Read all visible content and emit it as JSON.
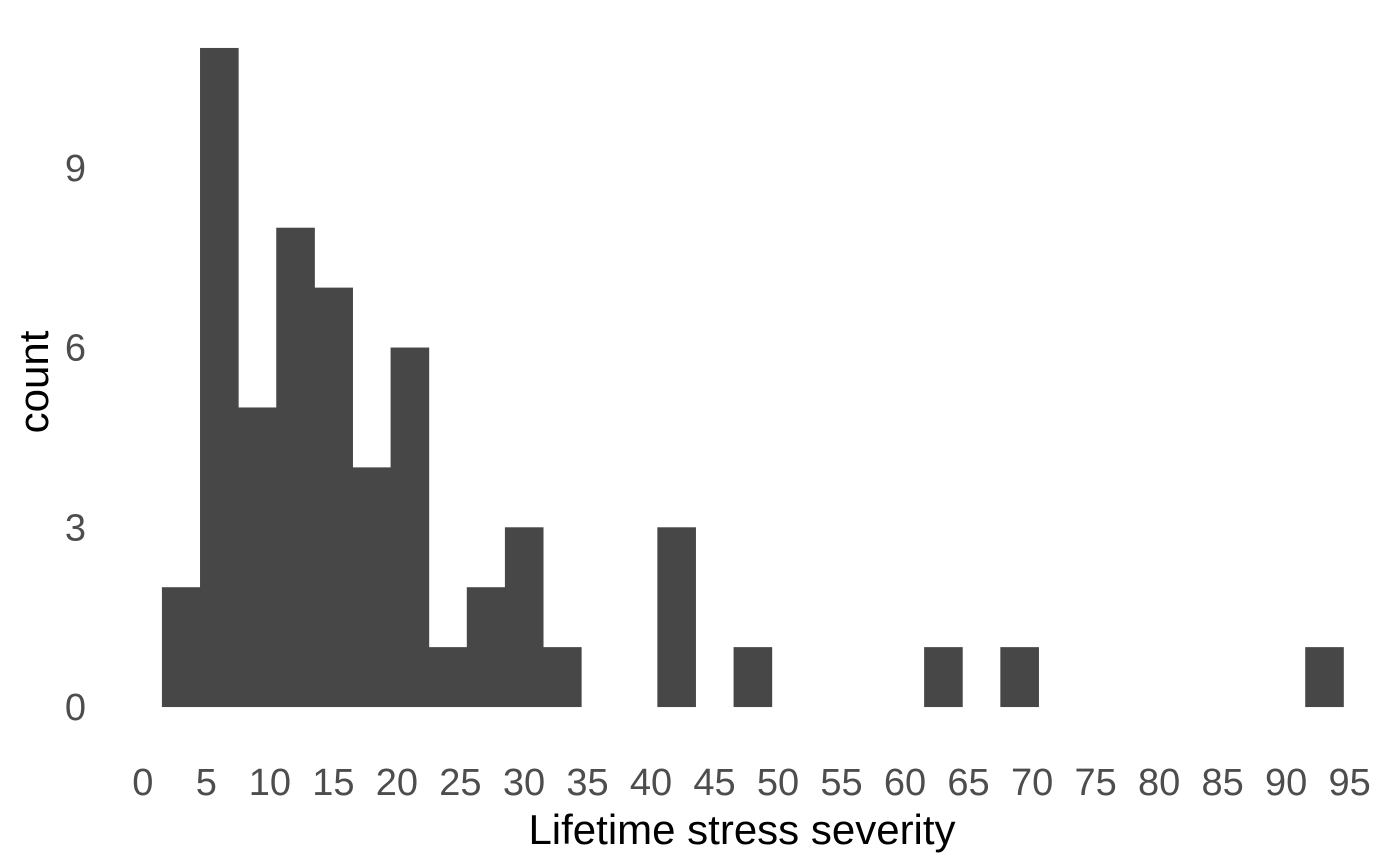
{
  "chart_data": {
    "type": "bar",
    "title": "",
    "xlabel": "Lifetime stress severity",
    "ylabel": "count",
    "x_ticks": [
      0,
      5,
      10,
      15,
      20,
      25,
      30,
      35,
      40,
      45,
      50,
      55,
      60,
      65,
      70,
      75,
      80,
      85,
      90,
      95
    ],
    "y_ticks": [
      0,
      3,
      6,
      9
    ],
    "xlim": [
      -1.8,
      96.6
    ],
    "ylim": [
      -0.55,
      11.55
    ],
    "bin_width": 3,
    "bins": [
      {
        "start": 1.5,
        "end": 4.5,
        "count": 2
      },
      {
        "start": 4.5,
        "end": 7.5,
        "count": 11
      },
      {
        "start": 7.5,
        "end": 10.5,
        "count": 5
      },
      {
        "start": 10.5,
        "end": 13.5,
        "count": 8
      },
      {
        "start": 13.5,
        "end": 16.5,
        "count": 7
      },
      {
        "start": 16.5,
        "end": 19.5,
        "count": 4
      },
      {
        "start": 19.5,
        "end": 22.5,
        "count": 6
      },
      {
        "start": 22.5,
        "end": 25.5,
        "count": 1
      },
      {
        "start": 25.5,
        "end": 28.5,
        "count": 2
      },
      {
        "start": 28.5,
        "end": 31.5,
        "count": 3
      },
      {
        "start": 31.5,
        "end": 34.5,
        "count": 1
      },
      {
        "start": 34.5,
        "end": 37.5,
        "count": 0
      },
      {
        "start": 37.5,
        "end": 40.5,
        "count": 0
      },
      {
        "start": 40.5,
        "end": 43.5,
        "count": 3
      },
      {
        "start": 43.5,
        "end": 46.5,
        "count": 0
      },
      {
        "start": 46.5,
        "end": 49.5,
        "count": 1
      },
      {
        "start": 49.5,
        "end": 52.5,
        "count": 0
      },
      {
        "start": 52.5,
        "end": 55.5,
        "count": 0
      },
      {
        "start": 55.5,
        "end": 58.5,
        "count": 0
      },
      {
        "start": 58.5,
        "end": 61.5,
        "count": 0
      },
      {
        "start": 61.5,
        "end": 64.5,
        "count": 1
      },
      {
        "start": 64.5,
        "end": 67.5,
        "count": 0
      },
      {
        "start": 67.5,
        "end": 70.5,
        "count": 1
      },
      {
        "start": 70.5,
        "end": 73.5,
        "count": 0
      },
      {
        "start": 73.5,
        "end": 76.5,
        "count": 0
      },
      {
        "start": 76.5,
        "end": 79.5,
        "count": 0
      },
      {
        "start": 79.5,
        "end": 82.5,
        "count": 0
      },
      {
        "start": 82.5,
        "end": 85.5,
        "count": 0
      },
      {
        "start": 85.5,
        "end": 88.5,
        "count": 0
      },
      {
        "start": 88.5,
        "end": 91.5,
        "count": 0
      },
      {
        "start": 91.5,
        "end": 94.5,
        "count": 1
      }
    ],
    "grid": false,
    "legend": "none",
    "bar_color": "#474747",
    "tick_label_color": "#4d4d4d",
    "axis_title_color": "#000000"
  }
}
